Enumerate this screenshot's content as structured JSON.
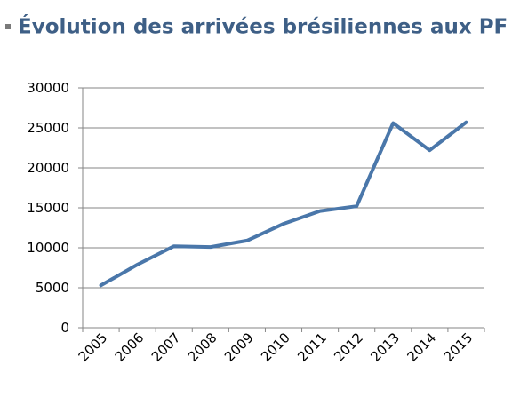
{
  "chart_data": {
    "type": "line",
    "title": "Évolution des arrivées brésiliennes aux PF",
    "categories": [
      "2005",
      "2006",
      "2007",
      "2008",
      "2009",
      "2010",
      "2011",
      "2012",
      "2013",
      "2014",
      "2015"
    ],
    "values": [
      5300,
      7900,
      10200,
      10100,
      10900,
      13000,
      14600,
      15200,
      25600,
      22200,
      25700
    ],
    "color": "#4a77aa",
    "ylim": [
      0,
      30000
    ],
    "yticks": [
      0,
      5000,
      10000,
      15000,
      20000,
      25000,
      30000
    ],
    "grid": true
  }
}
